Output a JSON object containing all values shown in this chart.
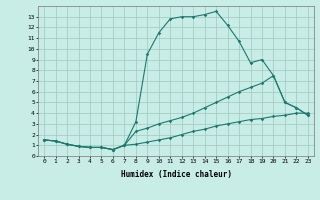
{
  "title": "",
  "xlabel": "Humidex (Indice chaleur)",
  "background_color": "#c8ece6",
  "grid_color": "#a0c8c0",
  "line_color": "#1a7a6e",
  "xlim": [
    -0.5,
    23.5
  ],
  "ylim": [
    0,
    14
  ],
  "xticks": [
    0,
    1,
    2,
    3,
    4,
    5,
    6,
    7,
    8,
    9,
    10,
    11,
    12,
    13,
    14,
    15,
    16,
    17,
    18,
    19,
    20,
    21,
    22,
    23
  ],
  "yticks": [
    0,
    1,
    2,
    3,
    4,
    5,
    6,
    7,
    8,
    9,
    10,
    11,
    12,
    13
  ],
  "curve1_x": [
    0,
    1,
    2,
    3,
    4,
    5,
    6,
    7,
    8,
    9,
    10,
    11,
    12,
    13,
    14,
    15,
    16,
    17,
    18,
    19,
    20,
    21,
    22,
    23
  ],
  "curve1_y": [
    1.5,
    1.4,
    1.1,
    0.9,
    0.8,
    0.8,
    0.6,
    1.0,
    1.1,
    1.3,
    1.5,
    1.7,
    2.0,
    2.3,
    2.5,
    2.8,
    3.0,
    3.2,
    3.4,
    3.5,
    3.7,
    3.8,
    4.0,
    4.0
  ],
  "curve2_x": [
    0,
    1,
    2,
    3,
    4,
    5,
    6,
    7,
    8,
    9,
    10,
    11,
    12,
    13,
    14,
    15,
    16,
    17,
    18,
    19,
    20,
    21,
    22,
    23
  ],
  "curve2_y": [
    1.5,
    1.4,
    1.1,
    0.9,
    0.8,
    0.8,
    0.6,
    1.0,
    2.3,
    2.6,
    3.0,
    3.3,
    3.6,
    4.0,
    4.5,
    5.0,
    5.5,
    6.0,
    6.4,
    6.8,
    7.5,
    5.0,
    4.5,
    3.8
  ],
  "curve3_x": [
    0,
    1,
    2,
    3,
    4,
    5,
    6,
    7,
    8,
    9,
    10,
    11,
    12,
    13,
    14,
    15,
    16,
    17,
    18,
    19,
    20,
    21,
    22,
    23
  ],
  "curve3_y": [
    1.5,
    1.4,
    1.1,
    0.9,
    0.8,
    0.8,
    0.6,
    1.0,
    3.2,
    9.5,
    11.5,
    12.8,
    13.0,
    13.0,
    13.2,
    13.5,
    12.2,
    10.7,
    8.7,
    9.0,
    7.5,
    5.0,
    4.5,
    3.8
  ]
}
